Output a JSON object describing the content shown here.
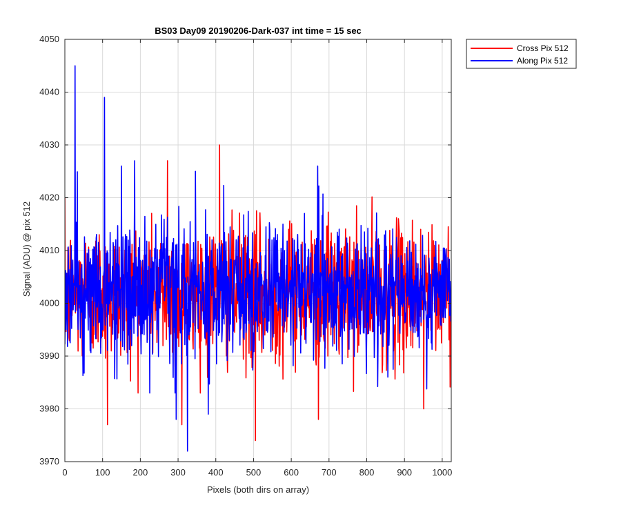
{
  "chart_data": {
    "type": "line",
    "title": "BS03 Day09 20190206-Dark-037 int time = 15 sec",
    "xlabel": "Pixels (both dirs on array)",
    "ylabel": "Signal (ADU) @ pix 512",
    "xlim": [
      0,
      1024
    ],
    "ylim": [
      3970,
      4050
    ],
    "xticks": [
      0,
      100,
      200,
      300,
      400,
      500,
      600,
      700,
      800,
      900,
      1000
    ],
    "yticks": [
      3970,
      3980,
      3990,
      4000,
      4010,
      4020,
      4030,
      4040,
      4050
    ],
    "grid": true,
    "legend_position": "outside-top-right",
    "colors": {
      "cross": "#ff0000",
      "along": "#0000ff",
      "grid": "#d9d9d9",
      "axis": "#262626"
    },
    "series": [
      {
        "name": "Cross Pix 512",
        "color": "#ff0000",
        "n_points": 1024,
        "mean": 4002,
        "std": 6.5,
        "key_points": [
          {
            "x": 410,
            "y": 4030
          },
          {
            "x": 505,
            "y": 3974
          },
          {
            "x": 113,
            "y": 3977
          },
          {
            "x": 272,
            "y": 4027
          },
          {
            "x": 672,
            "y": 3978
          },
          {
            "x": 951,
            "y": 3980
          },
          {
            "x": 310,
            "y": 3977
          }
        ]
      },
      {
        "name": "Along Pix 512",
        "color": "#0000ff",
        "n_points": 1024,
        "mean": 4002,
        "std": 6.5,
        "key_points": [
          {
            "x": 27,
            "y": 4045
          },
          {
            "x": 105,
            "y": 4039
          },
          {
            "x": 325,
            "y": 3972
          },
          {
            "x": 380,
            "y": 3979
          },
          {
            "x": 295,
            "y": 3978
          },
          {
            "x": 670,
            "y": 4026
          },
          {
            "x": 150,
            "y": 4026
          },
          {
            "x": 185,
            "y": 4027
          }
        ]
      }
    ]
  }
}
